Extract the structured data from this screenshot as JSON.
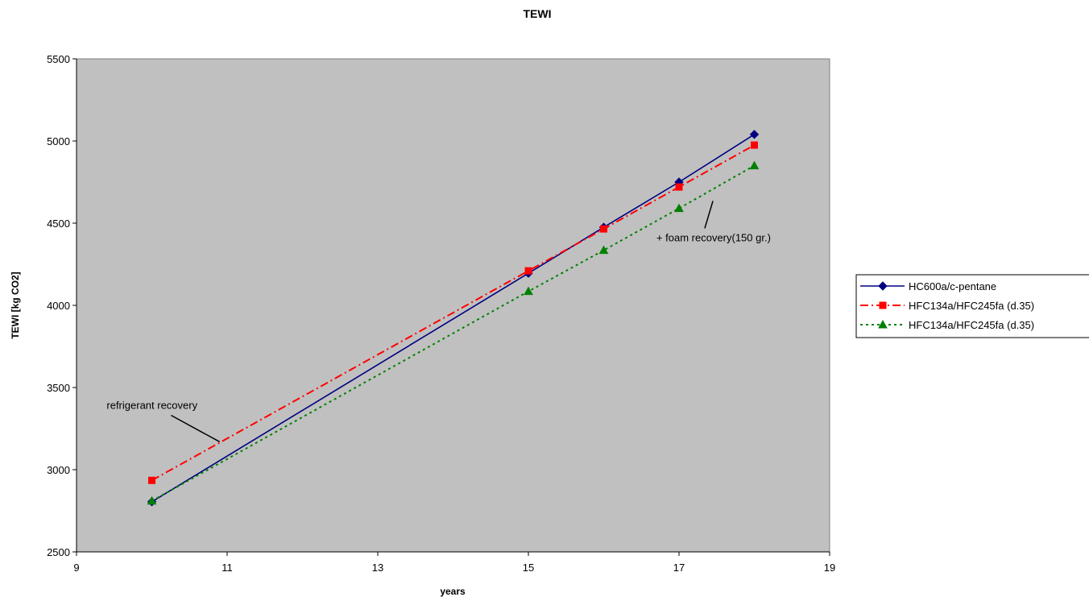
{
  "chart_data": {
    "type": "line",
    "title": "TEWI",
    "xlabel": "years",
    "ylabel": "TEWI [kg CO2]",
    "xlim": [
      9,
      19
    ],
    "ylim": [
      2500,
      5500
    ],
    "xticks": [
      9,
      11,
      13,
      15,
      17,
      19
    ],
    "yticks": [
      2500,
      3000,
      3500,
      4000,
      4500,
      5000,
      5500
    ],
    "x": [
      10,
      15,
      16,
      17,
      18
    ],
    "grid": false,
    "plot_background": "#c0c0c0",
    "legend_position": "right",
    "series": [
      {
        "name": "HC600a/c-pentane",
        "values": [
          2805,
          4195,
          4475,
          4750,
          5040
        ],
        "color": "#000080",
        "style": "solid",
        "marker": "diamond"
      },
      {
        "name": "HFC134a/HFC245fa (d.35)",
        "values": [
          2935,
          4210,
          4465,
          4720,
          4975
        ],
        "color": "#ff0000",
        "style": "dashdot",
        "marker": "square"
      },
      {
        "name": "HFC134a/HFC245fa (d.35)",
        "values": [
          2810,
          4085,
          4335,
          4590,
          4850
        ],
        "color": "#008000",
        "style": "dotted",
        "marker": "triangle"
      }
    ],
    "annotations": [
      {
        "text": "refrigerant recovery",
        "x": 9.4,
        "y": 3370,
        "point_x": 10.9,
        "point_y": 3170
      },
      {
        "text": "+ foam recovery(150 gr.)",
        "x": 16.7,
        "y": 4390,
        "point_x": 17.45,
        "point_y": 4635
      }
    ]
  }
}
